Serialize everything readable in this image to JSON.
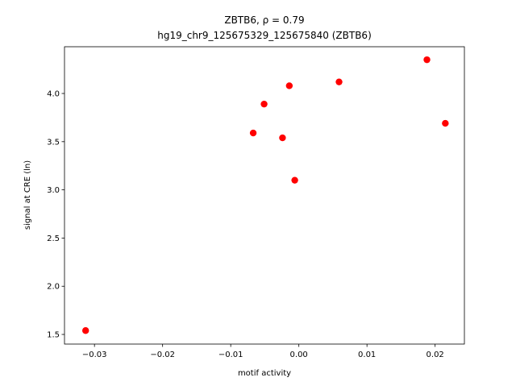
{
  "chart_data": {
    "type": "scatter",
    "title": "ZBTB6, ρ = 0.79",
    "subtitle": "hg19_chr9_125675329_125675840 (ZBTB6)",
    "x_label": "motif activity",
    "y_label": "signal at CRE (ln)",
    "series": [
      {
        "color": "#ff0000",
        "x": [
          -0.0313,
          -0.0067,
          -0.0051,
          -0.0024,
          -0.0014,
          -0.0006,
          0.0059,
          0.0188,
          0.0215
        ],
        "values": [
          1.54,
          3.59,
          3.89,
          3.54,
          4.08,
          3.1,
          4.12,
          4.35,
          3.69
        ]
      }
    ],
    "xlim": [
      -0.0344,
      0.0243
    ],
    "ylim": [
      1.4,
      4.485
    ],
    "xticks": [
      {
        "value": -0.03,
        "label": "−0.03"
      },
      {
        "value": -0.02,
        "label": "−0.02"
      },
      {
        "value": -0.01,
        "label": "−0.01"
      },
      {
        "value": 0,
        "label": "0.00"
      },
      {
        "value": 0.01,
        "label": "0.01"
      },
      {
        "value": 0.02,
        "label": "0.02"
      }
    ],
    "yticks": [
      1.5,
      {
        "value": 2,
        "label": "2.0"
      },
      2.5,
      {
        "value": 3,
        "label": "3.0"
      },
      3.5,
      {
        "value": 4,
        "label": "4.0"
      }
    ],
    "grid": false
  }
}
